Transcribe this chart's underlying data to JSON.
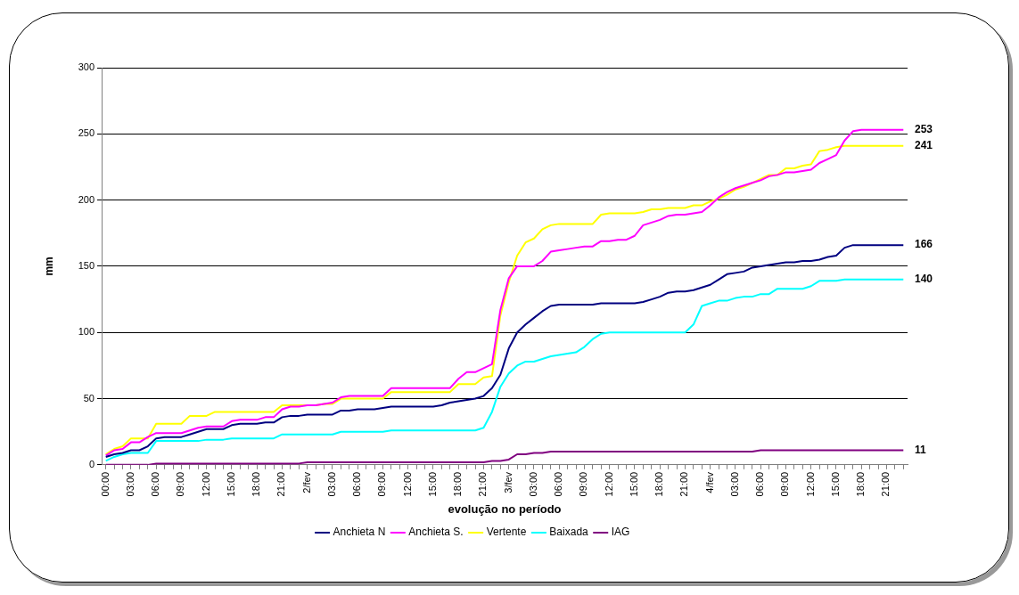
{
  "chart_data": {
    "type": "line",
    "xlabel": "evolução no período",
    "ylabel": "mm",
    "ylim": [
      0,
      300
    ],
    "yticks": [
      0,
      50,
      100,
      150,
      200,
      250,
      300
    ],
    "grid": "y",
    "legend": "bottom",
    "marker": "none",
    "line_style": "solid",
    "categories": [
      "00:00",
      null,
      null,
      "03:00",
      null,
      null,
      "06:00",
      null,
      null,
      "09:00",
      null,
      null,
      "12:00",
      null,
      null,
      "15:00",
      null,
      null,
      "18:00",
      null,
      null,
      "21:00",
      null,
      null,
      "2/fev",
      null,
      null,
      "03:00",
      null,
      null,
      "06:00",
      null,
      null,
      "09:00",
      null,
      null,
      "12:00",
      null,
      null,
      "15:00",
      null,
      null,
      "18:00",
      null,
      null,
      "21:00",
      null,
      null,
      "3/fev",
      null,
      null,
      "03:00",
      null,
      null,
      "06:00",
      null,
      null,
      "09:00",
      null,
      null,
      "12:00",
      null,
      null,
      "15:00",
      null,
      null,
      "18:00",
      null,
      null,
      "21:00",
      null,
      null,
      "4/fev",
      null,
      null,
      "03:00",
      null,
      null,
      "06:00",
      null,
      null,
      "09:00",
      null,
      null,
      "12:00",
      null,
      null,
      "15:00",
      null,
      null,
      "18:00",
      null,
      null,
      "21:00",
      null,
      null
    ],
    "series": [
      {
        "name": "Anchieta N",
        "color": "#000080",
        "values": [
          6,
          8,
          9,
          11,
          11,
          14,
          20,
          21,
          21,
          21,
          23,
          25,
          27,
          27,
          27,
          30,
          31,
          31,
          31,
          32,
          32,
          36,
          37,
          37,
          38,
          38,
          38,
          38,
          41,
          41,
          42,
          42,
          42,
          43,
          44,
          44,
          44,
          44,
          44,
          44,
          45,
          47,
          48,
          49,
          50,
          52,
          58,
          68,
          88,
          100,
          106,
          111,
          116,
          120,
          121,
          121,
          121,
          121,
          121,
          122,
          122,
          122,
          122,
          122,
          123,
          125,
          127,
          130,
          131,
          131,
          132,
          134,
          136,
          140,
          144,
          145,
          146,
          149,
          150,
          151,
          152,
          153,
          153,
          154,
          154,
          155,
          157,
          158,
          164,
          166,
          166,
          166,
          166,
          166,
          166,
          166
        ],
        "value_labels": [
          null,
          null,
          null,
          null,
          null,
          null,
          null,
          null,
          null,
          null,
          null,
          null,
          null,
          null,
          null,
          null,
          null,
          null,
          null,
          null,
          null,
          null,
          null,
          null,
          null,
          null,
          null,
          null,
          null,
          null,
          null,
          null,
          null,
          null,
          null,
          null,
          null,
          null,
          null,
          null,
          null,
          null,
          null,
          null,
          null,
          null,
          null,
          null,
          null,
          null,
          null,
          null,
          null,
          null,
          null,
          null,
          null,
          null,
          null,
          null,
          null,
          null,
          null,
          null,
          null,
          null,
          null,
          null,
          null,
          null,
          null,
          null,
          null,
          null,
          null,
          null,
          null,
          null,
          null,
          null,
          null,
          null,
          null,
          null,
          null,
          null,
          null,
          null,
          null,
          null,
          null,
          null,
          null,
          null,
          null,
          "166"
        ]
      },
      {
        "name": "Anchieta S.",
        "color": "#ff00ff",
        "values": [
          7,
          11,
          12,
          17,
          17,
          21,
          24,
          24,
          24,
          24,
          26,
          28,
          29,
          29,
          29,
          33,
          34,
          34,
          34,
          36,
          36,
          42,
          44,
          44,
          45,
          45,
          46,
          47,
          51,
          52,
          52,
          52,
          52,
          52,
          58,
          58,
          58,
          58,
          58,
          58,
          58,
          58,
          65,
          70,
          70,
          73,
          76,
          117,
          141,
          150,
          150,
          150,
          154,
          161,
          162,
          163,
          164,
          165,
          165,
          169,
          169,
          170,
          170,
          173,
          181,
          183,
          185,
          188,
          189,
          189,
          190,
          191,
          196,
          202,
          206,
          209,
          211,
          213,
          215,
          218,
          219,
          221,
          221,
          222,
          223,
          228,
          231,
          234,
          245,
          252,
          253,
          253,
          253,
          253,
          253,
          253
        ],
        "value_labels": [
          null,
          null,
          null,
          null,
          null,
          null,
          null,
          null,
          null,
          null,
          null,
          null,
          null,
          null,
          null,
          null,
          null,
          null,
          null,
          null,
          null,
          null,
          null,
          null,
          null,
          null,
          null,
          null,
          null,
          null,
          null,
          null,
          null,
          null,
          null,
          null,
          null,
          null,
          null,
          null,
          null,
          null,
          null,
          null,
          null,
          null,
          null,
          null,
          null,
          null,
          null,
          null,
          null,
          null,
          null,
          null,
          null,
          null,
          null,
          null,
          null,
          null,
          null,
          null,
          null,
          null,
          null,
          null,
          null,
          null,
          null,
          null,
          null,
          null,
          null,
          null,
          null,
          null,
          null,
          null,
          null,
          null,
          null,
          null,
          null,
          null,
          null,
          null,
          null,
          null,
          null,
          null,
          null,
          null,
          null,
          "253"
        ]
      },
      {
        "name": "Vertente",
        "color": "#ffff00",
        "values": [
          8,
          12,
          14,
          20,
          20,
          20,
          31,
          31,
          31,
          31,
          37,
          37,
          37,
          40,
          40,
          40,
          40,
          40,
          40,
          40,
          40,
          45,
          45,
          45,
          45,
          45,
          46,
          46,
          50,
          50,
          50,
          50,
          50,
          50,
          55,
          55,
          55,
          55,
          55,
          55,
          55,
          55,
          61,
          61,
          61,
          66,
          67,
          113,
          138,
          158,
          168,
          171,
          178,
          181,
          182,
          182,
          182,
          182,
          182,
          189,
          190,
          190,
          190,
          190,
          191,
          193,
          193,
          194,
          194,
          194,
          196,
          196,
          199,
          201,
          204,
          208,
          210,
          213,
          216,
          219,
          219,
          224,
          224,
          226,
          227,
          237,
          238,
          240,
          241,
          241,
          241,
          241,
          241,
          241,
          241,
          241
        ],
        "value_labels": [
          null,
          null,
          null,
          null,
          null,
          null,
          null,
          null,
          null,
          null,
          null,
          null,
          null,
          null,
          null,
          null,
          null,
          null,
          null,
          null,
          null,
          null,
          null,
          null,
          null,
          null,
          null,
          null,
          null,
          null,
          null,
          null,
          null,
          null,
          null,
          null,
          null,
          null,
          null,
          null,
          null,
          null,
          null,
          null,
          null,
          null,
          null,
          null,
          null,
          null,
          null,
          null,
          null,
          null,
          null,
          null,
          null,
          null,
          null,
          null,
          null,
          null,
          null,
          null,
          null,
          null,
          null,
          null,
          null,
          null,
          null,
          null,
          null,
          null,
          null,
          null,
          null,
          null,
          null,
          null,
          null,
          null,
          null,
          null,
          null,
          null,
          null,
          null,
          null,
          null,
          null,
          null,
          null,
          null,
          null,
          "241"
        ]
      },
      {
        "name": "Baixada",
        "color": "#00ffff",
        "values": [
          3,
          6,
          8,
          9,
          9,
          9,
          18,
          18,
          18,
          18,
          18,
          18,
          19,
          19,
          19,
          20,
          20,
          20,
          20,
          20,
          20,
          23,
          23,
          23,
          23,
          23,
          23,
          23,
          25,
          25,
          25,
          25,
          25,
          25,
          26,
          26,
          26,
          26,
          26,
          26,
          26,
          26,
          26,
          26,
          26,
          28,
          40,
          59,
          69,
          75,
          78,
          78,
          80,
          82,
          83,
          84,
          85,
          89,
          95,
          99,
          100,
          100,
          100,
          100,
          100,
          100,
          100,
          100,
          100,
          100,
          106,
          120,
          122,
          124,
          124,
          126,
          127,
          127,
          129,
          129,
          133,
          133,
          133,
          133,
          135,
          139,
          139,
          139,
          140,
          140,
          140,
          140,
          140,
          140,
          140,
          140
        ],
        "value_labels": [
          null,
          null,
          null,
          null,
          null,
          null,
          null,
          null,
          null,
          null,
          null,
          null,
          null,
          null,
          null,
          null,
          null,
          null,
          null,
          null,
          null,
          null,
          null,
          null,
          null,
          null,
          null,
          null,
          null,
          null,
          null,
          null,
          null,
          null,
          null,
          null,
          null,
          null,
          null,
          null,
          null,
          null,
          null,
          null,
          null,
          null,
          null,
          null,
          null,
          null,
          null,
          null,
          null,
          null,
          null,
          null,
          null,
          null,
          null,
          null,
          null,
          null,
          null,
          null,
          null,
          null,
          null,
          null,
          null,
          null,
          null,
          null,
          null,
          null,
          null,
          null,
          null,
          null,
          null,
          null,
          null,
          null,
          null,
          null,
          null,
          null,
          null,
          null,
          null,
          null,
          null,
          null,
          null,
          null,
          null,
          "140"
        ]
      },
      {
        "name": "IAG",
        "color": "#800080",
        "values": [
          0,
          0,
          0,
          0,
          0,
          0,
          1,
          1,
          1,
          1,
          1,
          1,
          1,
          1,
          1,
          1,
          1,
          1,
          1,
          1,
          1,
          1,
          1,
          1,
          2,
          2,
          2,
          2,
          2,
          2,
          2,
          2,
          2,
          2,
          2,
          2,
          2,
          2,
          2,
          2,
          2,
          2,
          2,
          2,
          2,
          2,
          3,
          3,
          4,
          8,
          8,
          9,
          9,
          10,
          10,
          10,
          10,
          10,
          10,
          10,
          10,
          10,
          10,
          10,
          10,
          10,
          10,
          10,
          10,
          10,
          10,
          10,
          10,
          10,
          10,
          10,
          10,
          10,
          11,
          11,
          11,
          11,
          11,
          11,
          11,
          11,
          11,
          11,
          11,
          11,
          11,
          11,
          11,
          11,
          11,
          11
        ],
        "value_labels": [
          null,
          null,
          null,
          null,
          null,
          null,
          null,
          null,
          null,
          null,
          null,
          null,
          null,
          null,
          null,
          null,
          null,
          null,
          null,
          null,
          null,
          null,
          null,
          null,
          null,
          null,
          null,
          null,
          null,
          null,
          null,
          null,
          null,
          null,
          null,
          null,
          null,
          null,
          null,
          null,
          null,
          null,
          null,
          null,
          null,
          null,
          null,
          null,
          null,
          null,
          null,
          null,
          null,
          null,
          null,
          null,
          null,
          null,
          null,
          null,
          null,
          null,
          null,
          null,
          null,
          null,
          null,
          null,
          null,
          null,
          null,
          null,
          null,
          null,
          null,
          null,
          null,
          null,
          null,
          null,
          null,
          null,
          null,
          null,
          null,
          null,
          null,
          null,
          null,
          null,
          null,
          null,
          null,
          null,
          null,
          "11"
        ]
      }
    ],
    "data_labels": false
  }
}
